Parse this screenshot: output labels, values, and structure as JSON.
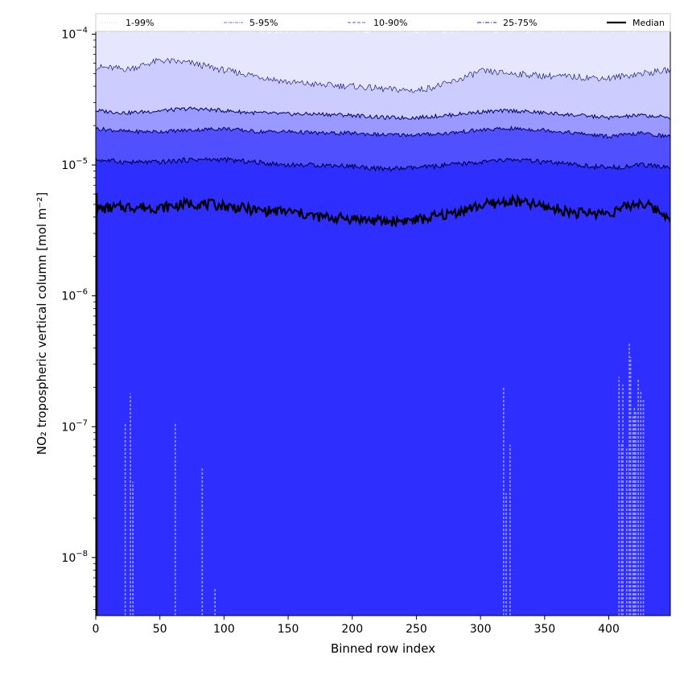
{
  "chart_data": {
    "type": "area",
    "title": "",
    "xlabel": "Binned row index",
    "ylabel": "NO₂ tropospheric vertical column [mol m⁻²]",
    "xlim": [
      0,
      448
    ],
    "ylim": [
      3.6e-09,
      0.000105
    ],
    "yscale": "log",
    "grid": false,
    "legend_position": "top, full width",
    "x_ticks": [
      0,
      50,
      100,
      150,
      200,
      250,
      300,
      350,
      400
    ],
    "x_tick_labels": [
      "0",
      "50",
      "100",
      "150",
      "200",
      "250",
      "300",
      "350",
      "400"
    ],
    "y_ticks": [
      1e-08,
      1e-07,
      1e-06,
      1e-05,
      0.0001
    ],
    "y_tick_labels": [
      {
        "base": "10",
        "exp": "−8"
      },
      {
        "base": "10",
        "exp": "−7"
      },
      {
        "base": "10",
        "exp": "−6"
      },
      {
        "base": "10",
        "exp": "−5"
      },
      {
        "base": "10",
        "exp": "−4"
      }
    ],
    "x": [
      0,
      25,
      50,
      75,
      100,
      125,
      150,
      175,
      200,
      225,
      250,
      275,
      300,
      325,
      350,
      375,
      400,
      425,
      448
    ],
    "series": [
      {
        "name": "1-99%",
        "style": "dotted",
        "color": "#e6e6ff",
        "low": [
          3.6e-09,
          3.6e-09,
          3.6e-09,
          3.6e-09,
          3.6e-09,
          3.6e-09,
          3.6e-09,
          3.6e-09,
          3.6e-09,
          3.6e-09,
          3.6e-09,
          3.6e-09,
          3.6e-09,
          3.6e-09,
          3.6e-09,
          3.6e-09,
          3.6e-09,
          3.6e-09,
          3.6e-09
        ],
        "high": [
          0.000105,
          0.000105,
          0.000105,
          0.000105,
          0.000105,
          0.000105,
          0.000105,
          0.000105,
          0.000105,
          0.000105,
          0.000105,
          0.000105,
          0.000105,
          0.000105,
          0.000105,
          0.000105,
          0.000105,
          0.000105,
          0.000105
        ]
      },
      {
        "name": "5-95%",
        "style": "dash-dot",
        "color": "#ccccff",
        "low": [
          3.6e-09,
          3.6e-09,
          3.6e-09,
          3.6e-09,
          3.6e-09,
          3.6e-09,
          3.6e-09,
          3.6e-09,
          3.6e-09,
          3.6e-09,
          3.6e-09,
          3.6e-09,
          3.6e-09,
          3.6e-09,
          3.6e-09,
          3.6e-09,
          3.6e-09,
          3.6e-09,
          3.6e-09
        ],
        "high": [
          5.6e-05,
          5.4e-05,
          6.3e-05,
          6e-05,
          5.3e-05,
          4.8e-05,
          4.3e-05,
          4.1e-05,
          4e-05,
          3.8e-05,
          3.7e-05,
          4.2e-05,
          5.2e-05,
          5e-05,
          4.8e-05,
          4.7e-05,
          4.6e-05,
          5e-05,
          5.3e-05
        ]
      },
      {
        "name": "10-90%",
        "style": "dashed",
        "color": "#9999ff",
        "low": [
          3.6e-09,
          3.6e-09,
          3.6e-09,
          3.6e-09,
          3.6e-09,
          3.6e-09,
          3.6e-09,
          3.6e-09,
          3.6e-09,
          3.6e-09,
          3.6e-09,
          3.6e-09,
          3.6e-09,
          3.6e-09,
          3.6e-09,
          3.6e-09,
          3.6e-09,
          3.6e-09,
          3.6e-09
        ],
        "high": [
          2.6e-05,
          2.5e-05,
          2.6e-05,
          2.7e-05,
          2.6e-05,
          2.5e-05,
          2.45e-05,
          2.45e-05,
          2.4e-05,
          2.3e-05,
          2.3e-05,
          2.4e-05,
          2.55e-05,
          2.6e-05,
          2.5e-05,
          2.4e-05,
          2.3e-05,
          2.4e-05,
          2.3e-05
        ]
      },
      {
        "name": "25-75%",
        "style": "dashdot",
        "color": "#5050ff",
        "low": [
          3.6e-09,
          3.6e-09,
          3.6e-09,
          3.6e-09,
          3.6e-09,
          3.6e-09,
          3.6e-09,
          3.6e-09,
          3.6e-09,
          3.6e-09,
          3.6e-09,
          3.6e-09,
          3.6e-09,
          3.6e-09,
          3.6e-09,
          3.6e-09,
          3.6e-09,
          3.6e-09,
          3.6e-09
        ],
        "high": [
          1.9e-05,
          1.8e-05,
          1.8e-05,
          1.85e-05,
          1.9e-05,
          1.8e-05,
          1.8e-05,
          1.75e-05,
          1.75e-05,
          1.7e-05,
          1.7e-05,
          1.75e-05,
          1.85e-05,
          1.9e-05,
          1.85e-05,
          1.75e-05,
          1.65e-05,
          1.75e-05,
          1.65e-05
        ]
      },
      {
        "name": "Median",
        "style": "solid",
        "color": "#000000",
        "values": [
          4.6e-06,
          4.8e-06,
          4.7e-06,
          5.1e-06,
          4.9e-06,
          4.5e-06,
          4.4e-06,
          4e-06,
          3.9e-06,
          3.7e-06,
          3.8e-06,
          4.2e-06,
          4.9e-06,
          5.3e-06,
          4.8e-06,
          4.3e-06,
          4.3e-06,
          5.2e-06,
          4e-06
        ]
      }
    ],
    "inner_band": {
      "color": "#2e2eff",
      "low": 3.6e-09,
      "high": [
        1.1e-05,
        1.05e-05,
        1.05e-05,
        1.1e-05,
        1.1e-05,
        1.05e-05,
        1e-05,
        1e-05,
        9.8e-06,
        9.3e-06,
        9.5e-06,
        1e-05,
        1.05e-05,
        1.1e-05,
        1.05e-05,
        1e-05,
        9.5e-06,
        1e-05,
        9.6e-06
      ]
    },
    "band_edges": [
      {
        "values": [
          1.1e-05,
          1.05e-05,
          1.05e-05,
          1.1e-05,
          1.1e-05,
          1.05e-05,
          1e-05,
          1e-05,
          9.8e-06,
          9.3e-06,
          9.5e-06,
          1e-05,
          1.05e-05,
          1.1e-05,
          1.05e-05,
          1e-05,
          9.5e-06,
          1e-05,
          9.6e-06
        ]
      }
    ],
    "low_spikes": [
      {
        "x": 23,
        "y": 1.08e-07
      },
      {
        "x": 27,
        "y": 1.8e-07
      },
      {
        "x": 29,
        "y": 3.8e-08
      },
      {
        "x": 62,
        "y": 1.08e-07
      },
      {
        "x": 83,
        "y": 4.8e-08
      },
      {
        "x": 93,
        "y": 5.8e-09
      },
      {
        "x": 318,
        "y": 2e-07
      },
      {
        "x": 320,
        "y": 3.1e-08
      },
      {
        "x": 323,
        "y": 7.3e-08
      },
      {
        "x": 408,
        "y": 2.4e-07
      },
      {
        "x": 410,
        "y": 7.5e-08
      },
      {
        "x": 411,
        "y": 2.1e-07
      },
      {
        "x": 414,
        "y": 6.8e-08
      },
      {
        "x": 416,
        "y": 4.3e-07
      },
      {
        "x": 417,
        "y": 3.4e-07
      },
      {
        "x": 419,
        "y": 1.2e-07
      },
      {
        "x": 420,
        "y": 1.4e-07
      },
      {
        "x": 421,
        "y": 1.3e-07
      },
      {
        "x": 423,
        "y": 2.3e-07
      },
      {
        "x": 425,
        "y": 1.9e-07
      },
      {
        "x": 427,
        "y": 1.6e-07
      }
    ]
  }
}
